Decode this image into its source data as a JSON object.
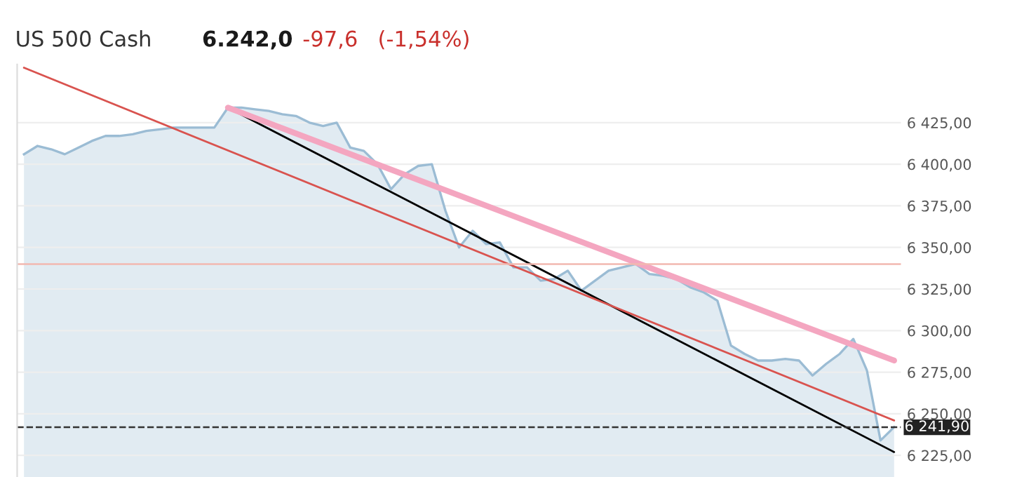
{
  "chart_data": {
    "type": "area",
    "title": "US 500 Cash",
    "annotations": [
      "6.242,0",
      "-97,6",
      "(-1,54%)"
    ],
    "categories": [
      null,
      null,
      null,
      null,
      null,
      null,
      null,
      null,
      null,
      null,
      null,
      null,
      null,
      null,
      null,
      null,
      null,
      null,
      null,
      null,
      null,
      null,
      null,
      null,
      null,
      null,
      null,
      null,
      null,
      null,
      null,
      null,
      null,
      null,
      null,
      null,
      null,
      null,
      null,
      null,
      null,
      null,
      null,
      null,
      null,
      null,
      null,
      null,
      null,
      null,
      null,
      null,
      null,
      null,
      null,
      null,
      null,
      null,
      null,
      null,
      null,
      null,
      null,
      null,
      null
    ],
    "ylim": [
      6212,
      6460
    ],
    "yticks": [
      {
        "value": 6225,
        "label": "6 225,00"
      },
      {
        "value": 6250,
        "label": "6 250,00"
      },
      {
        "value": 6275,
        "label": "6 275,00"
      },
      {
        "value": 6300,
        "label": "6 300,00"
      },
      {
        "value": 6325,
        "label": "6 325,00"
      },
      {
        "value": 6350,
        "label": "6 350,00"
      },
      {
        "value": 6375,
        "label": "6 375,00"
      },
      {
        "value": 6400,
        "label": "6 400,00"
      },
      {
        "value": 6425,
        "label": "6 425,00"
      }
    ],
    "tick_labels": "y",
    "grid": true,
    "series": [
      {
        "color": "#9bbcd4",
        "values": [
          6406,
          6411,
          6409,
          6406,
          6410,
          6414,
          6417,
          6417,
          6418,
          6420,
          6421,
          6422,
          6422,
          6422,
          6422,
          6434,
          6434,
          6433,
          6432,
          6430,
          6429,
          6425,
          6423,
          6425,
          6410,
          6408,
          6400,
          6385,
          6394,
          6399,
          6400,
          6372,
          6350,
          6360,
          6352,
          6353,
          6338,
          6338,
          6330,
          6331,
          6336,
          6324,
          6330,
          6336,
          6338,
          6340,
          6334,
          6333,
          6331,
          6326,
          6323,
          6318,
          6291,
          6286,
          6282,
          6282,
          6283,
          6282,
          6273,
          6280,
          6286,
          6295,
          6276,
          6234,
          6242
        ]
      },
      {
        "type": "line",
        "color": "#000000",
        "values": [
          null,
          null,
          null,
          null,
          null,
          null,
          null,
          null,
          null,
          null,
          null,
          null,
          null,
          null,
          null,
          6434,
          null,
          null,
          null,
          null,
          null,
          null,
          null,
          null,
          null,
          null,
          null,
          null,
          null,
          null,
          null,
          null,
          null,
          null,
          null,
          null,
          null,
          null,
          null,
          null,
          null,
          null,
          null,
          null,
          null,
          null,
          null,
          null,
          null,
          null,
          null,
          null,
          null,
          null,
          null,
          null,
          null,
          null,
          null,
          null,
          null,
          null,
          null,
          null,
          6227
        ]
      },
      {
        "type": "line",
        "color": "#d9534f",
        "values": [
          6458,
          null,
          null,
          null,
          null,
          null,
          null,
          null,
          null,
          null,
          null,
          null,
          null,
          null,
          null,
          null,
          null,
          null,
          null,
          null,
          null,
          null,
          null,
          null,
          null,
          null,
          null,
          null,
          null,
          null,
          null,
          null,
          null,
          null,
          null,
          null,
          null,
          null,
          null,
          null,
          null,
          null,
          null,
          null,
          null,
          null,
          null,
          null,
          null,
          null,
          null,
          null,
          null,
          null,
          null,
          null,
          null,
          null,
          null,
          null,
          null,
          null,
          null,
          null,
          6246
        ]
      },
      {
        "type": "line",
        "color": "#f4a6c0",
        "values": [
          null,
          null,
          null,
          null,
          null,
          null,
          null,
          null,
          null,
          null,
          null,
          null,
          null,
          null,
          null,
          6434,
          null,
          null,
          null,
          null,
          null,
          null,
          null,
          null,
          null,
          null,
          null,
          null,
          null,
          null,
          null,
          null,
          null,
          null,
          null,
          null,
          null,
          null,
          null,
          null,
          null,
          null,
          null,
          null,
          null,
          null,
          null,
          null,
          null,
          null,
          null,
          null,
          null,
          null,
          null,
          null,
          null,
          null,
          null,
          null,
          null,
          null,
          null,
          null,
          6282
        ]
      }
    ],
    "ref_lines": [
      {
        "axis": "y",
        "value": 6340,
        "color": "#f2b8b0",
        "line_style": "solid"
      },
      {
        "axis": "y",
        "value": 6241.9,
        "label": "6 241,90",
        "color": "#333333",
        "line_style": "dashed"
      }
    ]
  }
}
